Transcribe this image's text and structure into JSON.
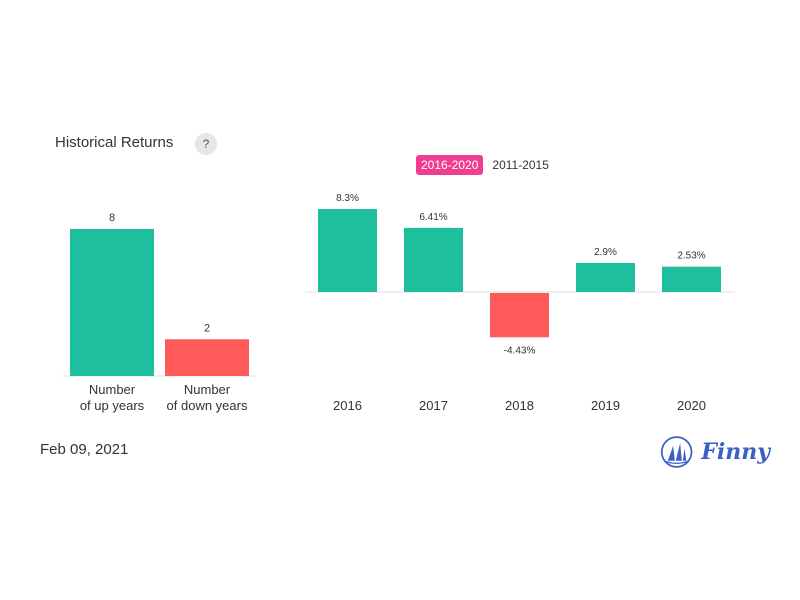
{
  "header": {
    "title": "Historical Returns",
    "help_label": "?"
  },
  "tabs": [
    {
      "label": "2016-2020",
      "active": true
    },
    {
      "label": "2011-2015",
      "active": false
    }
  ],
  "footer": {
    "date": "Feb 09, 2021",
    "brand": "Finny"
  },
  "colors": {
    "positive": "#1dbf9c",
    "negative": "#ff5a5a",
    "tab_active": "#ef3e8f",
    "brand": "#3b5fc4"
  },
  "chart_data": [
    {
      "type": "bar",
      "categories": [
        "Number\nof up years",
        "Number\nof down years"
      ],
      "values": [
        8,
        2
      ],
      "value_labels": [
        "8",
        "2"
      ],
      "ylim": [
        0,
        8
      ]
    },
    {
      "type": "bar",
      "categories": [
        "2016",
        "2017",
        "2018",
        "2019",
        "2020"
      ],
      "values": [
        8.3,
        6.41,
        -4.43,
        2.9,
        2.53
      ],
      "value_labels": [
        "8.3%",
        "6.41%",
        "-4.43%",
        "2.9%",
        "2.53%"
      ],
      "unit": "%",
      "ylim": [
        -4.43,
        8.3
      ]
    }
  ]
}
